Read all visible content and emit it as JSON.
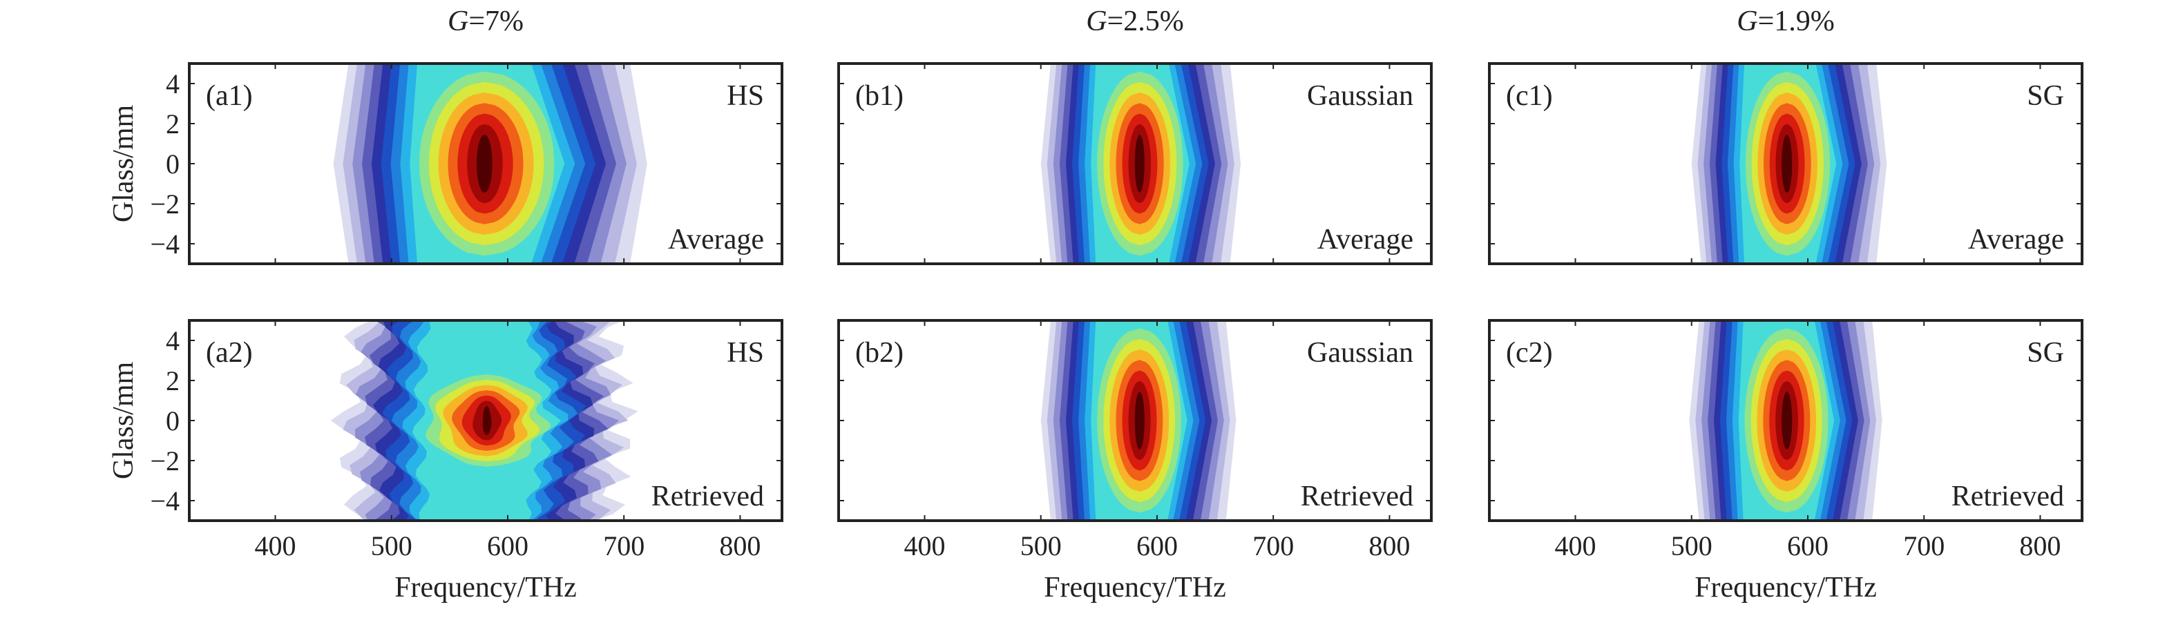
{
  "chart_data": {
    "type": "heatmap",
    "subtype": "filled-contour",
    "xlabel": "Frequency/THz",
    "ylabel": "Glass/mm",
    "xlim": [
      326,
      836
    ],
    "ylim": [
      -5,
      5
    ],
    "xticks": [
      400,
      500,
      600,
      700,
      800
    ],
    "yticks": [
      4,
      2,
      0,
      -2,
      -4
    ],
    "ytick_labels": [
      "4",
      "2",
      "0",
      "−2",
      "−4"
    ],
    "colormap": [
      "#dcdcf0",
      "#b8b8e2",
      "#8c8cd0",
      "#5a5ab8",
      "#2a34a6",
      "#1c50c4",
      "#2080dc",
      "#28b4e8",
      "#48dcd8",
      "#90e48c",
      "#d8e83c",
      "#f8b428",
      "#f06018",
      "#d81c10",
      "#a00808",
      "#500000"
    ],
    "columns": [
      {
        "title_var": "G",
        "title_value": "=7%",
        "panels": [
          {
            "label": "(a1)",
            "pulse": "HS",
            "kind": "Average",
            "center_thz": 580,
            "center_mm": 0,
            "left_thz": 450,
            "right_thz": 720,
            "core_halfwidth_thz": 45
          },
          {
            "label": "(a2)",
            "pulse": "HS",
            "kind": "Retrieved",
            "center_thz": 582,
            "center_mm": 0,
            "left_thz": 460,
            "right_thz": 700,
            "core_halfwidth_thz": 25
          }
        ]
      },
      {
        "title_var": "G",
        "title_value": "=2.5%",
        "panels": [
          {
            "label": "(b1)",
            "pulse": "Gaussian",
            "kind": "Average",
            "center_thz": 585,
            "center_mm": 0,
            "left_thz": 500,
            "right_thz": 672,
            "core_halfwidth_thz": 28
          },
          {
            "label": "(b2)",
            "pulse": "Gaussian",
            "kind": "Retrieved",
            "center_thz": 585,
            "center_mm": 0,
            "left_thz": 500,
            "right_thz": 668,
            "core_halfwidth_thz": 28
          }
        ]
      },
      {
        "title_var": "G",
        "title_value": "=1.9%",
        "panels": [
          {
            "label": "(c1)",
            "pulse": "SG",
            "kind": "Average",
            "center_thz": 582,
            "center_mm": 0,
            "left_thz": 500,
            "right_thz": 668,
            "core_halfwidth_thz": 30
          },
          {
            "label": "(c2)",
            "pulse": "SG",
            "kind": "Retrieved",
            "center_thz": 582,
            "center_mm": 0,
            "left_thz": 498,
            "right_thz": 664,
            "core_halfwidth_thz": 30
          }
        ]
      }
    ]
  }
}
